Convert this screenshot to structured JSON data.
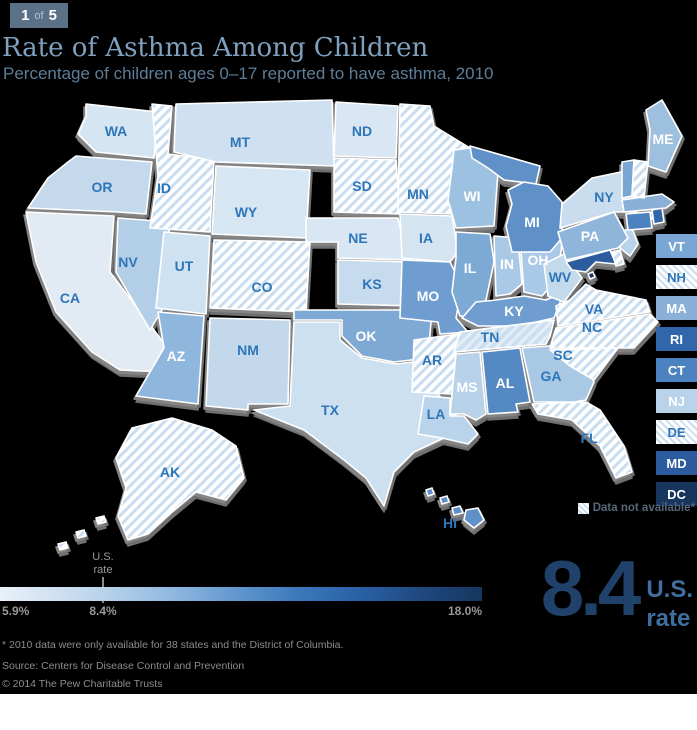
{
  "badge": {
    "current": "1",
    "of": "of",
    "total": "5"
  },
  "header": {
    "title": "Rate of Asthma Among Children",
    "subtitle": "Percentage of children ages 0–17 reported to have asthma, 2010"
  },
  "chart_data": {
    "type": "choropleth",
    "region": "United States",
    "title": "Rate of Asthma Among Children",
    "metric": "Percentage of children ages 0–17 reported to have asthma, 2010",
    "us_rate": 8.4,
    "scale": {
      "min": 5.9,
      "max": 18.0,
      "min_label": "5.9%",
      "us_label": "8.4%",
      "max_label": "18.0%",
      "gradient_start": "#e9f1f9",
      "gradient_end": "#17365e"
    },
    "no_data_label": "Data not available*",
    "no_data_states": [
      "ID",
      "SD",
      "CO",
      "MN",
      "AR",
      "VA",
      "NC",
      "SC",
      "FL",
      "AK",
      "NH",
      "DE"
    ],
    "label_colors": {
      "blue": "#2e76b8",
      "white": "#ffffff"
    },
    "states": [
      {
        "abbr": "WA",
        "fill": "#d5e5f2",
        "label_color": "#2e76b8",
        "no_data": false
      },
      {
        "abbr": "OR",
        "fill": "#c4d9ec",
        "label_color": "#2e76b8",
        "no_data": false
      },
      {
        "abbr": "CA",
        "fill": "#e2ebf4",
        "label_color": "#2e76b8",
        "no_data": false
      },
      {
        "abbr": "NV",
        "fill": "#b3cfe7",
        "label_color": "#2e76b8",
        "no_data": false
      },
      {
        "abbr": "ID",
        "fill": "",
        "label_color": "#2e76b8",
        "no_data": true
      },
      {
        "abbr": "MT",
        "fill": "#cfe1f0",
        "label_color": "#2e76b8",
        "no_data": false
      },
      {
        "abbr": "WY",
        "fill": "#d7e6f3",
        "label_color": "#2e76b8",
        "no_data": false
      },
      {
        "abbr": "UT",
        "fill": "#cfe2f1",
        "label_color": "#2e76b8",
        "no_data": false
      },
      {
        "abbr": "CO",
        "fill": "",
        "label_color": "#2e76b8",
        "no_data": true
      },
      {
        "abbr": "AZ",
        "fill": "#8fb7dd",
        "label_color": "#ffffff",
        "no_data": false
      },
      {
        "abbr": "NM",
        "fill": "#c3d8eb",
        "label_color": "#2e76b8",
        "no_data": false
      },
      {
        "abbr": "ND",
        "fill": "#d8e7f3",
        "label_color": "#2e76b8",
        "no_data": false
      },
      {
        "abbr": "SD",
        "fill": "",
        "label_color": "#2e76b8",
        "no_data": true
      },
      {
        "abbr": "NE",
        "fill": "#d8e7f3",
        "label_color": "#2e76b8",
        "no_data": false
      },
      {
        "abbr": "KS",
        "fill": "#c6dbee",
        "label_color": "#2e76b8",
        "no_data": false
      },
      {
        "abbr": "OK",
        "fill": "#7fa9d5",
        "label_color": "#ffffff",
        "no_data": false
      },
      {
        "abbr": "TX",
        "fill": "#cde0f0",
        "label_color": "#2e76b8",
        "no_data": false
      },
      {
        "abbr": "MN",
        "fill": "",
        "label_color": "#2e76b8",
        "no_data": true
      },
      {
        "abbr": "IA",
        "fill": "#d4e4f1",
        "label_color": "#2e76b8",
        "no_data": false
      },
      {
        "abbr": "MO",
        "fill": "#6f9dd0",
        "label_color": "#ffffff",
        "no_data": false
      },
      {
        "abbr": "AR",
        "fill": "",
        "label_color": "#2e76b8",
        "no_data": true
      },
      {
        "abbr": "LA",
        "fill": "#b9d3ea",
        "label_color": "#2e76b8",
        "no_data": false
      },
      {
        "abbr": "WI",
        "fill": "#9dc1e0",
        "label_color": "#ffffff",
        "no_data": false
      },
      {
        "abbr": "IL",
        "fill": "#7da9d5",
        "label_color": "#ffffff",
        "no_data": false
      },
      {
        "abbr": "IN",
        "fill": "#a9c9e6",
        "label_color": "#ffffff",
        "no_data": false
      },
      {
        "abbr": "OH",
        "fill": "#a9c9e6",
        "label_color": "#ffffff",
        "no_data": false
      },
      {
        "abbr": "MI",
        "fill": "#5f91c8",
        "label_color": "#ffffff",
        "no_data": false
      },
      {
        "abbr": "KY",
        "fill": "#6f9dd0",
        "label_color": "#ffffff",
        "no_data": false
      },
      {
        "abbr": "TN",
        "fill": "#cbdff1",
        "label_color": "#2e76b8",
        "no_data": false,
        "hatch_overlay": true
      },
      {
        "abbr": "MS",
        "fill": "#b7d2e9",
        "label_color": "#ffffff",
        "no_data": false
      },
      {
        "abbr": "AL",
        "fill": "#5589c3",
        "label_color": "#ffffff",
        "no_data": false
      },
      {
        "abbr": "GA",
        "fill": "#a8c8e4",
        "label_color": "#2e76b8",
        "no_data": false
      },
      {
        "abbr": "FL",
        "fill": "",
        "label_color": "#2e76b8",
        "no_data": true
      },
      {
        "abbr": "SC",
        "fill": "",
        "label_color": "#2e76b8",
        "no_data": true
      },
      {
        "abbr": "NC",
        "fill": "",
        "label_color": "#2e76b8",
        "no_data": true
      },
      {
        "abbr": "VA",
        "fill": "",
        "label_color": "#2e76b8",
        "no_data": true
      },
      {
        "abbr": "WV",
        "fill": "#c3d9ec",
        "label_color": "#2e76b8",
        "no_data": false
      },
      {
        "abbr": "MD",
        "fill": "#2c5b9e",
        "label_color": "#ffffff",
        "no_data": false
      },
      {
        "abbr": "DE",
        "fill": "",
        "label_color": "#2e76b8",
        "no_data": true
      },
      {
        "abbr": "NJ",
        "fill": "#b9d3ea",
        "label_color": "#ffffff",
        "no_data": false
      },
      {
        "abbr": "PA",
        "fill": "#8fb5da",
        "label_color": "#ffffff",
        "no_data": false
      },
      {
        "abbr": "NY",
        "fill": "#c9ddee",
        "label_color": "#2e76b8",
        "no_data": false
      },
      {
        "abbr": "CT",
        "fill": "#4d82c0",
        "label_color": "#ffffff",
        "no_data": false
      },
      {
        "abbr": "RI",
        "fill": "#3166ab",
        "label_color": "#ffffff",
        "no_data": false
      },
      {
        "abbr": "MA",
        "fill": "#8ab0d8",
        "label_color": "#ffffff",
        "no_data": false
      },
      {
        "abbr": "VT",
        "fill": "#7aa6d3",
        "label_color": "#ffffff",
        "no_data": false
      },
      {
        "abbr": "NH",
        "fill": "",
        "label_color": "#2e76b8",
        "no_data": true
      },
      {
        "abbr": "ME",
        "fill": "#9cc0de",
        "label_color": "#ffffff",
        "no_data": false
      },
      {
        "abbr": "AK",
        "fill": "",
        "label_color": "#2e76b8",
        "no_data": true
      },
      {
        "abbr": "HI",
        "fill": "#5f91c8",
        "label_color": "#2e76b8",
        "no_data": false
      },
      {
        "abbr": "DC",
        "fill": "#17355d",
        "label_color": "#ffffff",
        "no_data": false
      }
    ]
  },
  "side_list": [
    {
      "abbr": "VT",
      "fill": "#7aa6d3",
      "text": "#ffffff",
      "hatch": false
    },
    {
      "abbr": "NH",
      "fill": "",
      "text": "#2e76b8",
      "hatch": true
    },
    {
      "abbr": "MA",
      "fill": "#8ab0d8",
      "text": "#ffffff",
      "hatch": false
    },
    {
      "abbr": "RI",
      "fill": "#3166ab",
      "text": "#ffffff",
      "hatch": false
    },
    {
      "abbr": "CT",
      "fill": "#4d82c0",
      "text": "#ffffff",
      "hatch": false
    },
    {
      "abbr": "NJ",
      "fill": "#b9d3ea",
      "text": "#ffffff",
      "hatch": false
    },
    {
      "abbr": "DE",
      "fill": "",
      "text": "#2e76b8",
      "hatch": true
    },
    {
      "abbr": "MD",
      "fill": "#2c5b9e",
      "text": "#ffffff",
      "hatch": false
    },
    {
      "abbr": "DC",
      "fill": "#17355d",
      "text": "#ffffff",
      "hatch": false
    }
  ],
  "legend": {
    "us_caption_line1": "U.S.",
    "us_caption_line2": "rate",
    "min_label": "5.9%",
    "us_label": "8.4%",
    "max_label": "18.0%"
  },
  "big_stat": {
    "value": "8.4",
    "caption_line1": "U.S.",
    "caption_line2": "rate"
  },
  "footnotes": {
    "asterisk": "* 2010 data were only available for 38 states and the District of Columbia.",
    "source": "Source: Centers for Disease Control and Prevention",
    "copyright": "© 2014 The Pew Charitable Trusts"
  }
}
